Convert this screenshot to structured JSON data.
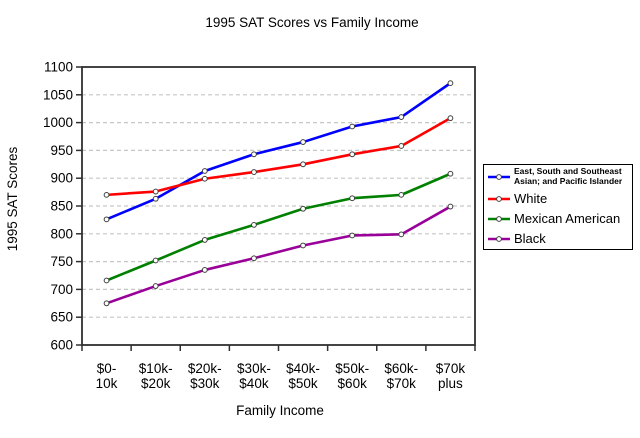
{
  "figure": {
    "background": "#ffffff",
    "text_color": "#000000"
  },
  "chart_data": {
    "type": "line",
    "title": "1995 SAT Scores vs Family Income",
    "xlabel": "Family Income",
    "ylabel": "1995 SAT Scores",
    "categories": [
      [
        "$0-",
        "10k"
      ],
      [
        "$10k-",
        "$20k"
      ],
      [
        "$20k-",
        "$30k"
      ],
      [
        "$30k-",
        "$40k"
      ],
      [
        "$40k-",
        "$50k"
      ],
      [
        "$50k-",
        "$60k"
      ],
      [
        "$60k-",
        "$70k"
      ],
      [
        "$70k",
        "plus"
      ]
    ],
    "ylim": [
      600,
      1100
    ],
    "yticks": [
      600,
      650,
      700,
      750,
      800,
      850,
      900,
      950,
      1000,
      1050,
      1100
    ],
    "grid": "horizontal dashed gridlines at every y tick between axis limits",
    "gridline_color": "#c6c6c6",
    "axis_color": "#303030",
    "legend_position": "right",
    "marker": {
      "shape": "circle",
      "fill": "#ffffff",
      "stroke": "#404040"
    },
    "series": [
      {
        "name": "East, South and Southeast Asian; and Pacific Islander",
        "legend_lines": [
          "East, South and Southeast",
          "Asian; and Pacific Islander"
        ],
        "color": "#0000ff",
        "values": [
          826,
          863,
          913,
          943,
          965,
          993,
          1010,
          1071
        ]
      },
      {
        "name": "White",
        "legend_lines": [
          "White"
        ],
        "color": "#ff0000",
        "values": [
          870,
          876,
          899,
          911,
          925,
          943,
          958,
          1008
        ]
      },
      {
        "name": "Mexican American",
        "legend_lines": [
          "Mexican American"
        ],
        "color": "#008000",
        "values": [
          716,
          752,
          789,
          816,
          845,
          864,
          870,
          908
        ]
      },
      {
        "name": "Black",
        "legend_lines": [
          "Black"
        ],
        "color": "#990099",
        "values": [
          675,
          706,
          735,
          756,
          779,
          797,
          799,
          849
        ]
      }
    ]
  }
}
